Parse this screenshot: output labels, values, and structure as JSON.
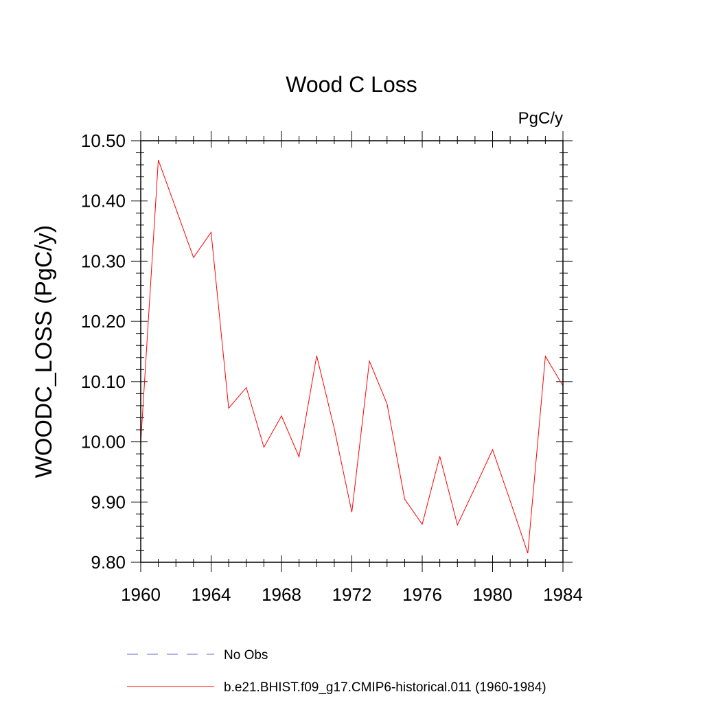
{
  "chart_data": {
    "type": "line",
    "title": "Wood C Loss",
    "units_label": "PgC/y",
    "xlabel": "",
    "ylabel": "WOODC_LOSS  (PgC/y)",
    "xlim": [
      1960,
      1984
    ],
    "ylim": [
      9.8,
      10.5
    ],
    "x_ticks": [
      1960,
      1964,
      1968,
      1972,
      1976,
      1980,
      1984
    ],
    "x_tick_labels": [
      "1960",
      "1964",
      "1968",
      "1972",
      "1976",
      "1980",
      "1984"
    ],
    "y_ticks": [
      9.8,
      9.9,
      10.0,
      10.1,
      10.2,
      10.3,
      10.4,
      10.5
    ],
    "y_tick_labels": [
      "9.80",
      "9.90",
      "10.00",
      "10.10",
      "10.20",
      "10.30",
      "10.40",
      "10.50"
    ],
    "grid": false,
    "legend_position": "bottom",
    "series": [
      {
        "name": "b.e21.BHIST.f09_g17.CMIP6-historical.011 (1960-1984)",
        "color": "#ff0000",
        "style": "solid",
        "x": [
          1960,
          1961,
          1962,
          1963,
          1964,
          1965,
          1966,
          1967,
          1968,
          1969,
          1970,
          1971,
          1972,
          1973,
          1974,
          1975,
          1976,
          1977,
          1978,
          1979,
          1980,
          1981,
          1982,
          1983,
          1984
        ],
        "y": [
          9.998,
          10.468,
          10.387,
          10.306,
          10.348,
          10.056,
          10.09,
          9.991,
          10.043,
          9.975,
          10.143,
          10.022,
          9.883,
          10.134,
          10.063,
          9.905,
          9.863,
          9.976,
          9.862,
          9.924,
          9.987,
          9.902,
          9.815,
          10.142,
          10.093
        ]
      }
    ],
    "legend": [
      {
        "label": "No Obs",
        "color": "#6666cc",
        "style": "dashed"
      },
      {
        "label": "b.e21.BHIST.f09_g17.CMIP6-historical.011 (1960-1984)",
        "color": "#ff0000",
        "style": "solid"
      }
    ]
  }
}
